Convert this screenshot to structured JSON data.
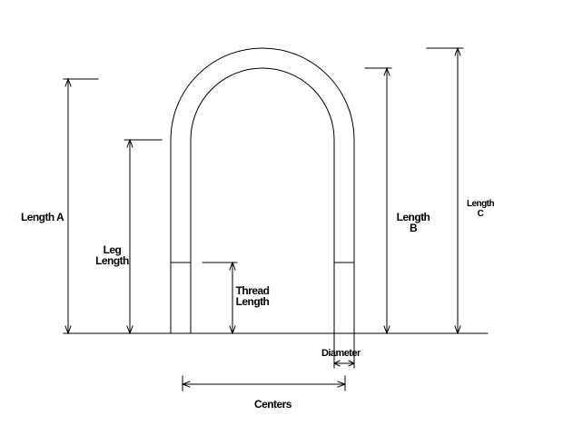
{
  "diagram": {
    "labels": {
      "length_a": "Length A",
      "leg_length": [
        "Leg",
        "Length"
      ],
      "thread_length": [
        "Thread",
        "Length"
      ],
      "length_b": [
        "Length",
        "B"
      ],
      "length_c": [
        "Length",
        "C"
      ],
      "diameter": "Diameter",
      "centers": "Centers"
    }
  }
}
